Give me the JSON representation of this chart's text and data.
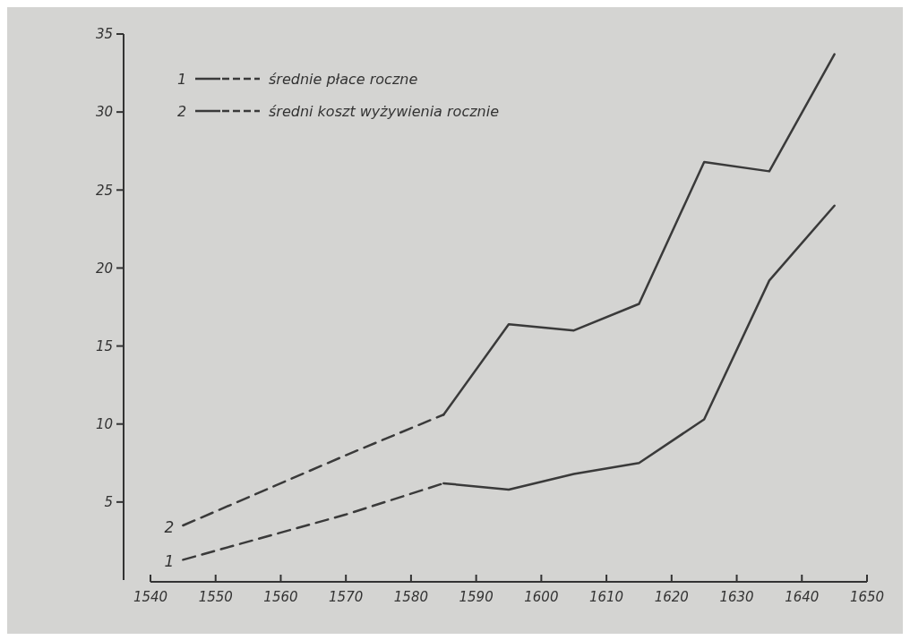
{
  "chart_data": {
    "type": "line",
    "xlim": [
      1540,
      1650
    ],
    "xticks": [
      1540,
      1550,
      1560,
      1570,
      1580,
      1590,
      1600,
      1610,
      1620,
      1630,
      1640,
      1650
    ],
    "ylim": [
      0,
      35
    ],
    "yticks": [
      5,
      10,
      15,
      20,
      25,
      30,
      35
    ],
    "legend": "top left",
    "grid": false,
    "marker": "none",
    "series": [
      {
        "name": "średnie płace roczne",
        "color": "#3a3a3a",
        "line_style": "dashed",
        "x": [
          1545,
          1570,
          1585
        ],
        "values": [
          1.3,
          4.2,
          6.2
        ]
      },
      {
        "color": "#3a3a3a",
        "line_style": "solid",
        "x": [
          1585,
          1595,
          1605,
          1615,
          1625,
          1635,
          1645
        ],
        "values": [
          6.2,
          5.8,
          6.8,
          7.5,
          10.3,
          19.2,
          24.0
        ]
      },
      {
        "name": "średni koszt wyżywienia rocznie",
        "color": "#3a3a3a",
        "line_style": "dashed",
        "x": [
          1545,
          1570,
          1585
        ],
        "values": [
          3.5,
          8.0,
          10.6
        ]
      },
      {
        "color": "#3a3a3a",
        "line_style": "solid",
        "x": [
          1585,
          1595,
          1605,
          1615,
          1625,
          1635,
          1645
        ],
        "values": [
          10.6,
          16.4,
          16.0,
          17.7,
          26.8,
          26.2,
          33.7
        ]
      }
    ],
    "annotations": [
      {
        "text": "1",
        "x": 1545,
        "y": 1.3
      },
      {
        "text": "2",
        "x": 1545,
        "y": 3.5
      }
    ]
  }
}
